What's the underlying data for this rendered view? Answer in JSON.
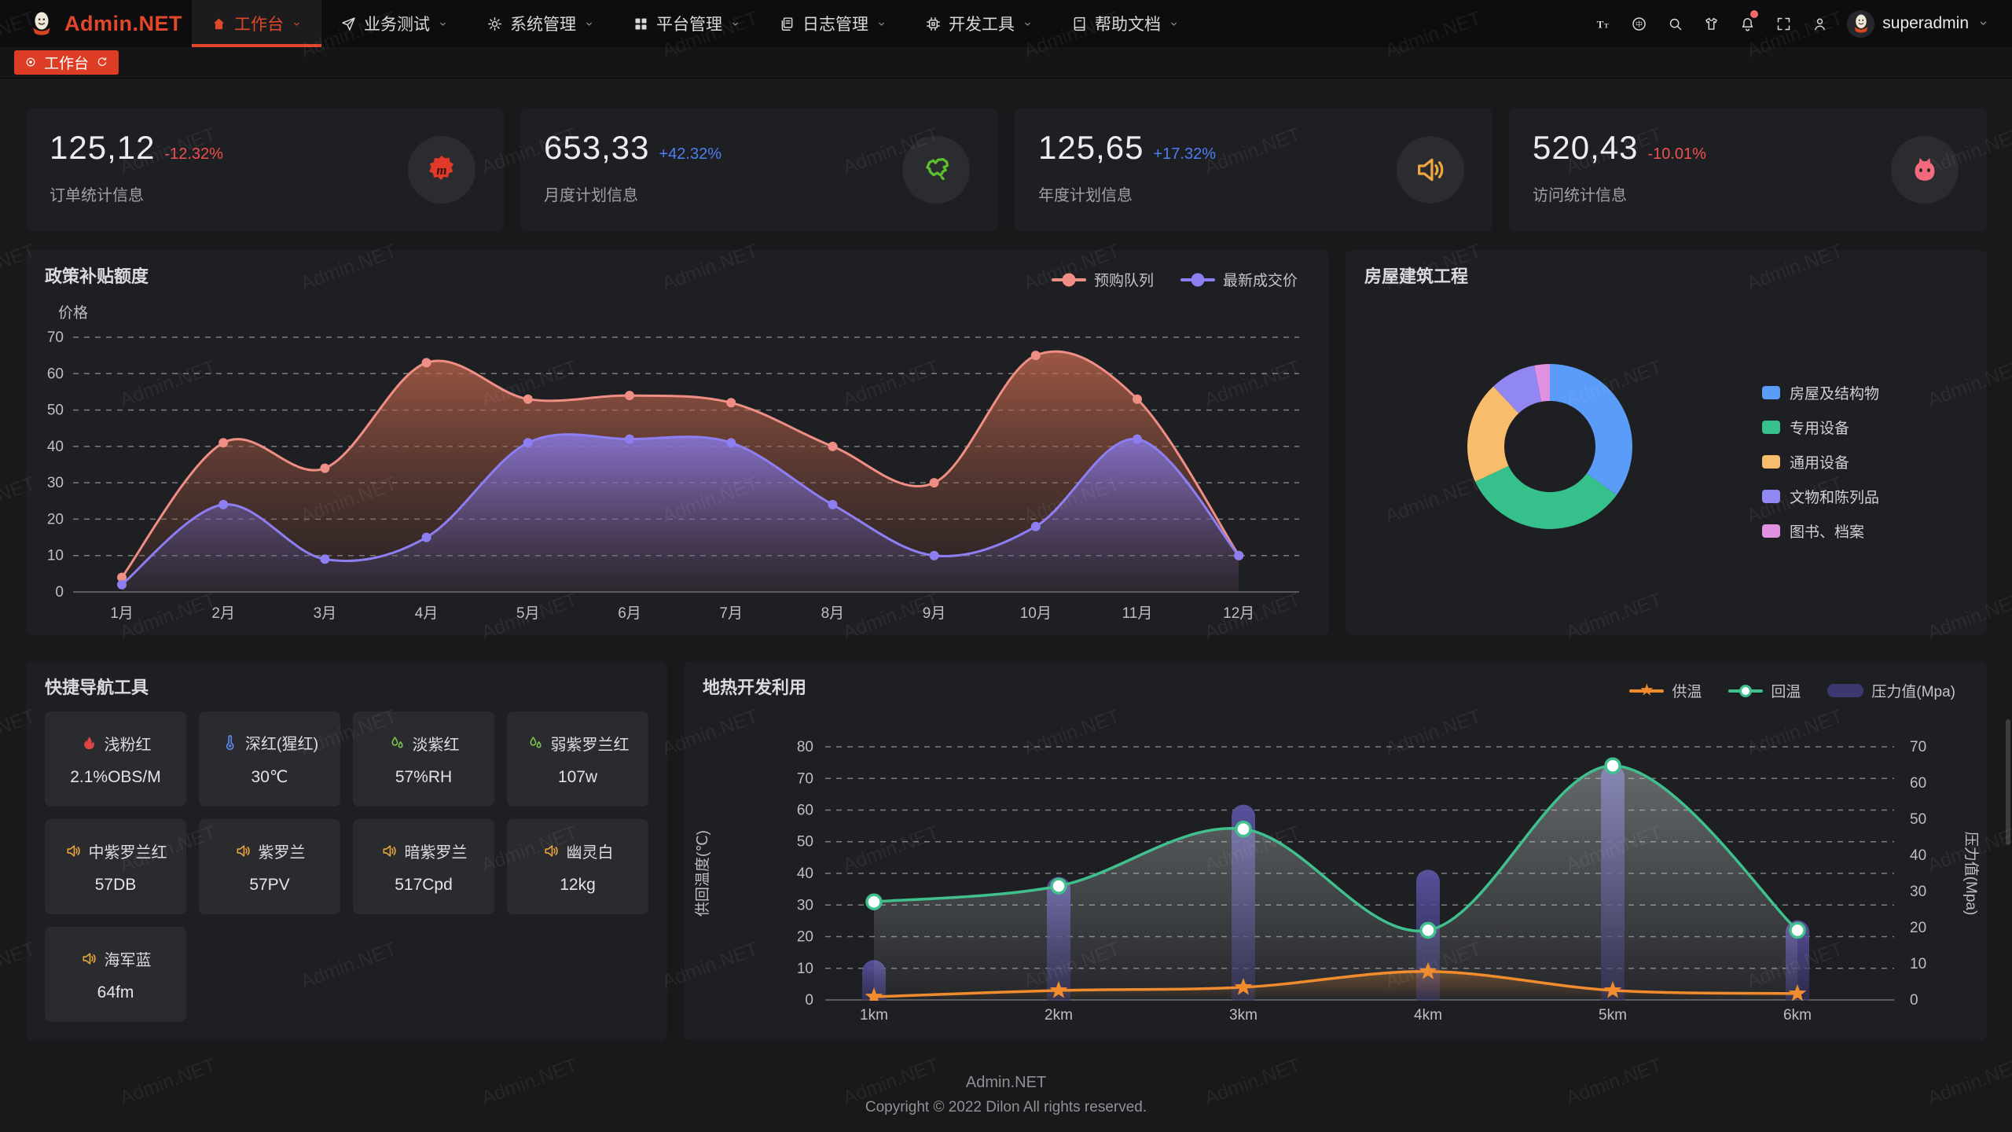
{
  "app": {
    "brand": "Admin.NET",
    "watermark": "Admin.NET"
  },
  "navbar": {
    "items": [
      {
        "label": "工作台",
        "icon": "home-icon",
        "active": true
      },
      {
        "label": "业务测试",
        "icon": "send-icon",
        "active": false
      },
      {
        "label": "系统管理",
        "icon": "gear-icon",
        "active": false
      },
      {
        "label": "平台管理",
        "icon": "grid-icon",
        "active": false
      },
      {
        "label": "日志管理",
        "icon": "document-icon",
        "active": false
      },
      {
        "label": "开发工具",
        "icon": "cpu-icon",
        "active": false
      },
      {
        "label": "帮助文档",
        "icon": "book-icon",
        "active": false
      }
    ],
    "tools": [
      {
        "name": "font-size-icon",
        "badge": false
      },
      {
        "name": "language-icon",
        "badge": false
      },
      {
        "name": "search-icon",
        "badge": false
      },
      {
        "name": "theme-icon",
        "badge": false
      },
      {
        "name": "notification-icon",
        "badge": true
      },
      {
        "name": "fullscreen-icon",
        "badge": false
      },
      {
        "name": "profile-icon",
        "badge": false
      }
    ],
    "user": {
      "name": "superadmin"
    }
  },
  "tabs": [
    {
      "label": "工作台",
      "active": true
    }
  ],
  "stat_cards": [
    {
      "value": "125,12",
      "delta": "-12.32%",
      "delta_color": "#f0504f",
      "label": "订单统计信息",
      "icon": "meetup-icon",
      "icon_color": "#e2392b"
    },
    {
      "value": "653,33",
      "delta": "+42.32%",
      "delta_color": "#4f7df2",
      "label": "月度计划信息",
      "icon": "china-map-icon",
      "icon_color": "#5cc12e"
    },
    {
      "value": "125,65",
      "delta": "+17.32%",
      "delta_color": "#4f7df2",
      "label": "年度计划信息",
      "icon": "speaker-icon",
      "icon_color": "#eda73c"
    },
    {
      "value": "520,43",
      "delta": "-10.01%",
      "delta_color": "#f0504f",
      "label": "访问统计信息",
      "icon": "cat-icon",
      "icon_color": "#f3697c"
    }
  ],
  "quick_nav": {
    "title": "快捷导航工具",
    "tiles": [
      {
        "name": "浅粉红",
        "value": "2.1%OBS/M",
        "icon": "fire-icon",
        "icon_color": "#dd4444"
      },
      {
        "name": "深红(猩红)",
        "value": "30℃",
        "icon": "thermometer-icon",
        "icon_color": "#5e8bef"
      },
      {
        "name": "淡紫红",
        "value": "57%RH",
        "icon": "water-drops-icon",
        "icon_color": "#7cc14d"
      },
      {
        "name": "弱紫罗兰红",
        "value": "107w",
        "icon": "water-drops-icon",
        "icon_color": "#7cc14d"
      },
      {
        "name": "中紫罗兰红",
        "value": "57DB",
        "icon": "speaker-icon",
        "icon_color": "#e8a33d"
      },
      {
        "name": "紫罗兰",
        "value": "57PV",
        "icon": "speaker-icon",
        "icon_color": "#e8a33d"
      },
      {
        "name": "暗紫罗兰",
        "value": "517Cpd",
        "icon": "speaker-icon",
        "icon_color": "#e8a33d"
      },
      {
        "name": "幽灵白",
        "value": "12kg",
        "icon": "speaker-icon",
        "icon_color": "#e8a33d"
      },
      {
        "name": "海军蓝",
        "value": "64fm",
        "icon": "speaker-icon",
        "icon_color": "#e8a33d"
      }
    ]
  },
  "chart_data": [
    {
      "type": "area",
      "title": "政策补贴额度",
      "ylabel": "价格",
      "ylim": [
        0,
        70
      ],
      "grid": "dashed",
      "legend_position": "top-right",
      "categories": [
        "1月",
        "2月",
        "3月",
        "4月",
        "5月",
        "6月",
        "7月",
        "8月",
        "9月",
        "10月",
        "11月",
        "12月"
      ],
      "series": [
        {
          "name": "预购队列",
          "color": "#ef8e84",
          "values": [
            4,
            41,
            34,
            63,
            53,
            54,
            52,
            40,
            30,
            65,
            53,
            10
          ]
        },
        {
          "name": "最新成交价",
          "color": "#8d7ff2",
          "values": [
            2,
            24,
            9,
            15,
            41,
            42,
            41,
            24,
            10,
            18,
            42,
            10
          ]
        }
      ]
    },
    {
      "type": "pie",
      "title": "房屋建筑工程",
      "legend_position": "right",
      "hole": true,
      "segments": [
        {
          "label": "房屋及结构物",
          "value": 35,
          "color": "#5b9cf8"
        },
        {
          "label": "专用设备",
          "value": 33,
          "color": "#36c08b"
        },
        {
          "label": "通用设备",
          "value": 20,
          "color": "#f8bd6c"
        },
        {
          "label": "文物和陈列品",
          "value": 9,
          "color": "#9087f2"
        },
        {
          "label": "图书、档案",
          "value": 3,
          "color": "#e091df"
        }
      ]
    },
    {
      "type": "combo",
      "title": "地热开发利用",
      "ylabel_left": "供回温度(℃)",
      "ylabel_right": "压力值(Mpa)",
      "ylim_left": [
        0,
        80
      ],
      "ylim_right": [
        0,
        70
      ],
      "grid": "dashed",
      "legend_position": "top-right",
      "categories": [
        "1km",
        "2km",
        "3km",
        "4km",
        "5km",
        "6km"
      ],
      "series": [
        {
          "name": "供温",
          "chart": "line",
          "marker": "star",
          "axis": "left",
          "color": "#f08c2e",
          "values": [
            1,
            3,
            4,
            9,
            3,
            2
          ]
        },
        {
          "name": "回温",
          "chart": "line",
          "marker": "circle",
          "axis": "left",
          "color": "#3fc08c",
          "values": [
            31,
            36,
            54,
            22,
            74,
            22
          ]
        },
        {
          "name": "压力值(Mpa)",
          "chart": "bar",
          "marker": "bar",
          "axis": "right",
          "color": "#3c3870",
          "values": [
            11,
            34,
            54,
            36,
            65,
            22
          ]
        }
      ]
    }
  ],
  "footer": {
    "brand": "Admin.NET",
    "copyright": "Copyright © 2022 Dilon All rights reserved."
  }
}
